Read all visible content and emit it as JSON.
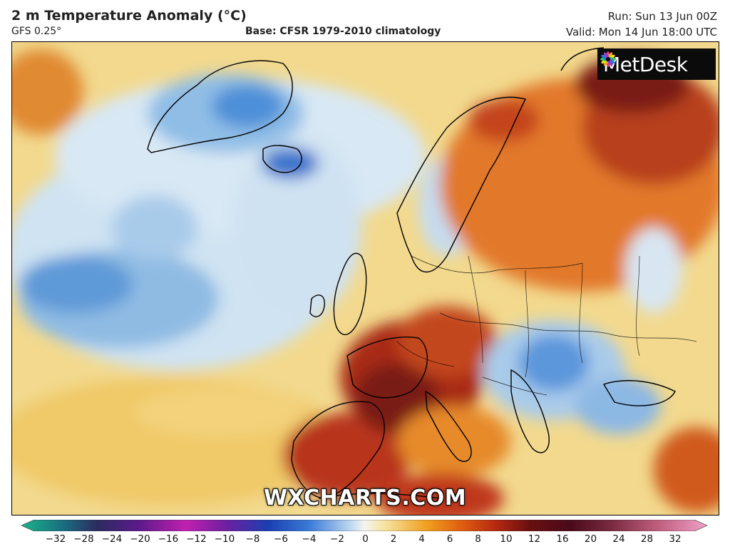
{
  "header": {
    "title": "2 m Temperature Anomaly (°C)",
    "model": "GFS 0.25°",
    "base": "Base: CFSR 1979-2010 climatology",
    "run": "Run: Sun 13 Jun 00Z",
    "valid": "Valid: Mon 14 Jun 18:00 UTC"
  },
  "logo": {
    "text": "MetDesk",
    "icon": "metdesk-flower-icon"
  },
  "watermark": "WXCHARTS.COM",
  "legend": {
    "ticks": [
      "−32",
      "−28",
      "−24",
      "−20",
      "−16",
      "−12",
      "−10",
      "−8",
      "−6",
      "−4",
      "−2",
      "0",
      "2",
      "4",
      "6",
      "8",
      "10",
      "12",
      "16",
      "20",
      "24",
      "28",
      "32"
    ],
    "colors": {
      "cold_end": "#1bb38a",
      "violet": "#5a1a8a",
      "magenta": "#c020b0",
      "deep_blue": "#1a3fb0",
      "blue": "#3b7bd8",
      "light_blue": "#bcd8f0",
      "white": "#f5f5f0",
      "light_yellow": "#f6e3a0",
      "orange": "#f0a020",
      "dark_orange": "#e06010",
      "red": "#b82a10",
      "dark_red": "#6a1010",
      "maroon": "#4a0a1a",
      "pink_end": "#f0a0c8"
    }
  }
}
